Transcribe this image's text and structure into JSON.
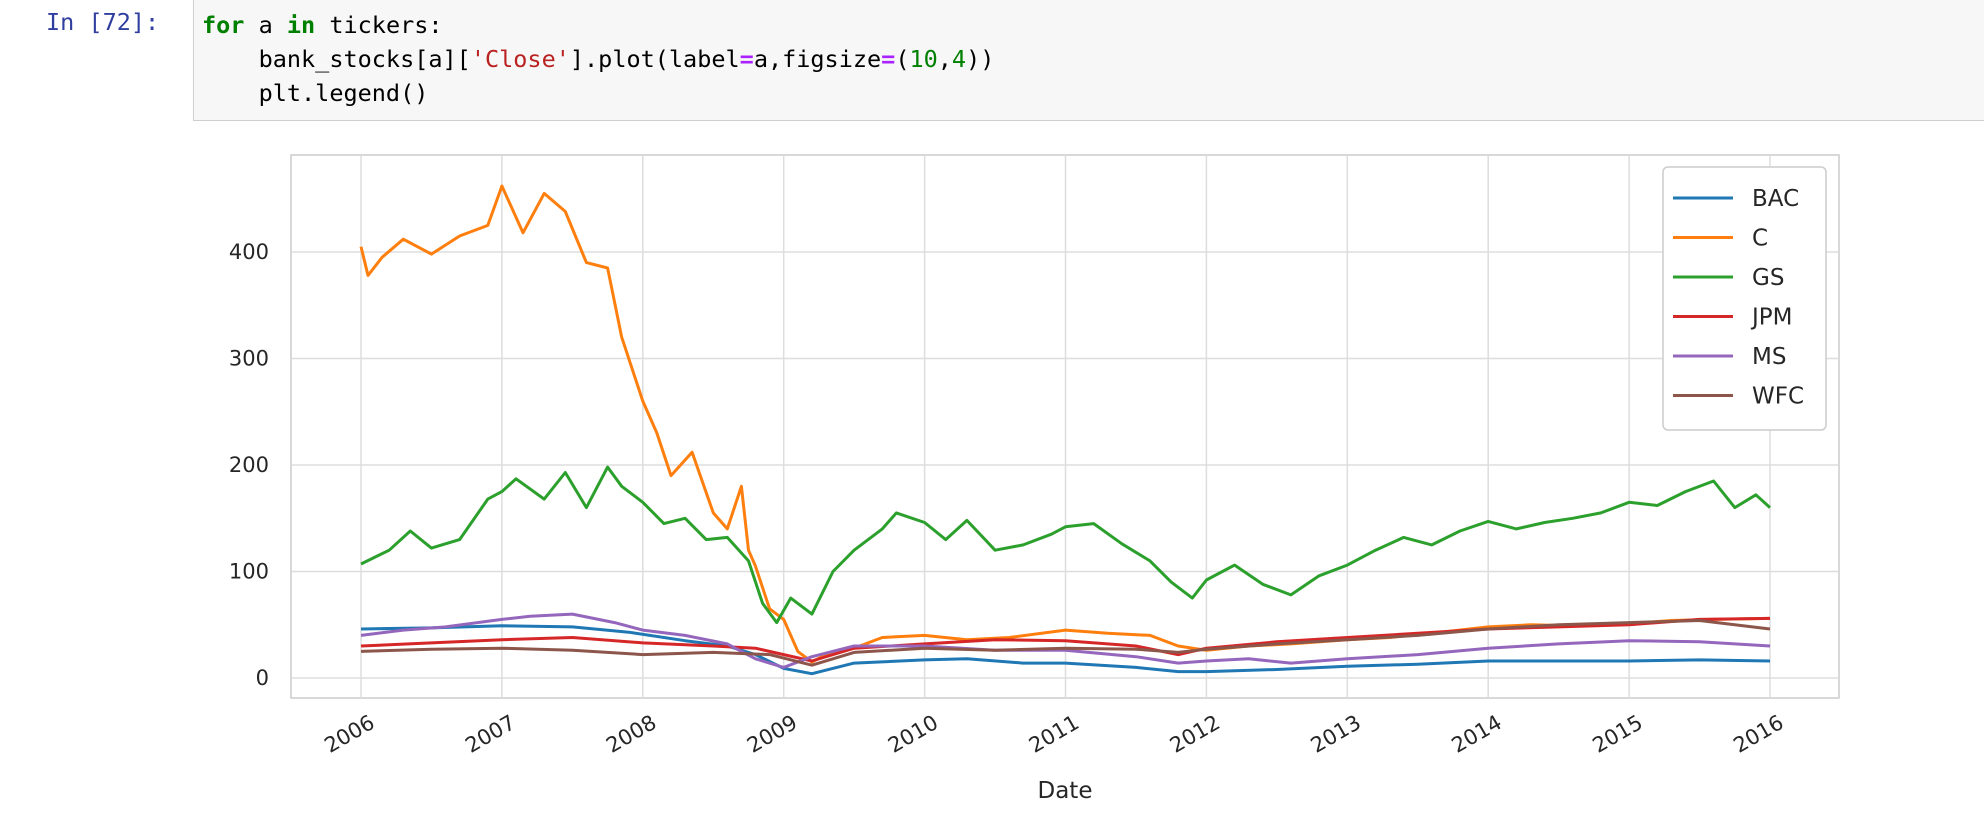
{
  "cell": {
    "prompt": "In [72]:",
    "code_lines": [
      [
        {
          "t": "for",
          "c": "kw"
        },
        {
          "t": " a ",
          "c": ""
        },
        {
          "t": "in",
          "c": "kw"
        },
        {
          "t": " tickers:",
          "c": ""
        }
      ],
      [
        {
          "t": "    bank_stocks[a][",
          "c": ""
        },
        {
          "t": "'Close'",
          "c": "str"
        },
        {
          "t": "].plot(label",
          "c": ""
        },
        {
          "t": "=",
          "c": "op"
        },
        {
          "t": "a,figsize",
          "c": ""
        },
        {
          "t": "=",
          "c": "op"
        },
        {
          "t": "(",
          "c": ""
        },
        {
          "t": "10",
          "c": "num"
        },
        {
          "t": ",",
          "c": ""
        },
        {
          "t": "4",
          "c": "num"
        },
        {
          "t": "))",
          "c": ""
        }
      ],
      [
        {
          "t": "    plt.legend()",
          "c": ""
        }
      ]
    ]
  },
  "chart_data": {
    "type": "line",
    "title": "",
    "xlabel": "Date",
    "ylabel": "",
    "x_ticks": [
      "2006",
      "2007",
      "2008",
      "2009",
      "2010",
      "2011",
      "2012",
      "2013",
      "2014",
      "2015",
      "2016"
    ],
    "y_ticks": [
      0,
      100,
      200,
      300,
      400
    ],
    "xlim": [
      2006.0,
      2016.0
    ],
    "ylim": [
      -20,
      490
    ],
    "grid": true,
    "legend_position": "upper right",
    "series": [
      {
        "name": "BAC",
        "color": "#1f77b4",
        "x": [
          2006.0,
          2006.5,
          2007.0,
          2007.5,
          2007.9,
          2008.3,
          2008.6,
          2008.8,
          2009.0,
          2009.2,
          2009.5,
          2010.0,
          2010.3,
          2010.7,
          2011.0,
          2011.5,
          2011.8,
          2012.0,
          2012.5,
          2013.0,
          2013.5,
          2014.0,
          2014.5,
          2015.0,
          2015.5,
          2016.0
        ],
        "y": [
          46,
          47,
          49,
          48,
          43,
          35,
          30,
          22,
          9,
          4,
          14,
          17,
          18,
          14,
          14,
          10,
          6,
          6,
          8,
          11,
          13,
          16,
          16,
          16,
          17,
          16
        ]
      },
      {
        "name": "C",
        "color": "#ff7f0e",
        "x": [
          2006.0,
          2006.05,
          2006.15,
          2006.3,
          2006.5,
          2006.7,
          2006.9,
          2007.0,
          2007.15,
          2007.3,
          2007.45,
          2007.6,
          2007.75,
          2007.85,
          2008.0,
          2008.1,
          2008.2,
          2008.35,
          2008.5,
          2008.6,
          2008.7,
          2008.75,
          2008.8,
          2008.9,
          2009.0,
          2009.1,
          2009.2,
          2009.3,
          2009.5,
          2009.7,
          2010.0,
          2010.3,
          2010.6,
          2011.0,
          2011.3,
          2011.6,
          2011.8,
          2012.0,
          2012.3,
          2012.6,
          2013.0,
          2013.3,
          2013.6,
          2014.0,
          2014.3,
          2014.6,
          2015.0,
          2015.3,
          2015.6,
          2016.0
        ],
        "y": [
          405,
          378,
          395,
          412,
          398,
          415,
          425,
          462,
          418,
          455,
          438,
          390,
          385,
          320,
          260,
          230,
          190,
          212,
          155,
          140,
          180,
          120,
          105,
          65,
          55,
          25,
          15,
          22,
          28,
          38,
          40,
          36,
          38,
          45,
          42,
          40,
          30,
          26,
          30,
          32,
          36,
          38,
          42,
          48,
          50,
          49,
          51,
          54,
          55,
          56
        ]
      },
      {
        "name": "GS",
        "color": "#2ca02c",
        "x": [
          2006.0,
          2006.2,
          2006.35,
          2006.5,
          2006.7,
          2006.9,
          2007.0,
          2007.1,
          2007.3,
          2007.45,
          2007.6,
          2007.75,
          2007.85,
          2008.0,
          2008.15,
          2008.3,
          2008.45,
          2008.6,
          2008.75,
          2008.85,
          2008.95,
          2009.05,
          2009.2,
          2009.35,
          2009.5,
          2009.7,
          2009.8,
          2010.0,
          2010.15,
          2010.3,
          2010.5,
          2010.7,
          2010.9,
          2011.0,
          2011.2,
          2011.4,
          2011.6,
          2011.75,
          2011.9,
          2012.0,
          2012.2,
          2012.4,
          2012.6,
          2012.8,
          2013.0,
          2013.2,
          2013.4,
          2013.6,
          2013.8,
          2014.0,
          2014.2,
          2014.4,
          2014.6,
          2014.8,
          2015.0,
          2015.2,
          2015.4,
          2015.6,
          2015.75,
          2015.9,
          2016.0
        ],
        "y": [
          107,
          120,
          138,
          122,
          130,
          168,
          175,
          187,
          168,
          193,
          160,
          198,
          180,
          165,
          145,
          150,
          130,
          132,
          110,
          70,
          52,
          75,
          60,
          100,
          120,
          140,
          155,
          146,
          130,
          148,
          120,
          125,
          135,
          142,
          145,
          126,
          110,
          90,
          75,
          92,
          106,
          88,
          78,
          96,
          106,
          120,
          132,
          125,
          138,
          147,
          140,
          146,
          150,
          155,
          165,
          162,
          175,
          185,
          160,
          172,
          160
        ]
      },
      {
        "name": "JPM",
        "color": "#d62728",
        "x": [
          2006.0,
          2006.5,
          2007.0,
          2007.5,
          2008.0,
          2008.5,
          2008.8,
          2009.0,
          2009.2,
          2009.5,
          2010.0,
          2010.5,
          2011.0,
          2011.5,
          2011.8,
          2012.0,
          2012.5,
          2013.0,
          2013.5,
          2014.0,
          2014.5,
          2015.0,
          2015.5,
          2016.0
        ],
        "y": [
          30,
          33,
          36,
          38,
          33,
          30,
          28,
          22,
          16,
          28,
          32,
          36,
          35,
          30,
          22,
          28,
          34,
          38,
          42,
          46,
          48,
          50,
          55,
          56
        ]
      },
      {
        "name": "MS",
        "color": "#9467bd",
        "x": [
          2006.0,
          2006.3,
          2006.6,
          2007.0,
          2007.2,
          2007.5,
          2007.8,
          2008.0,
          2008.3,
          2008.6,
          2008.8,
          2009.0,
          2009.2,
          2009.5,
          2010.0,
          2010.5,
          2011.0,
          2011.5,
          2011.8,
          2012.0,
          2012.3,
          2012.6,
          2013.0,
          2013.5,
          2014.0,
          2014.5,
          2015.0,
          2015.5,
          2016.0
        ],
        "y": [
          40,
          45,
          48,
          55,
          58,
          60,
          52,
          45,
          40,
          32,
          18,
          10,
          20,
          30,
          30,
          26,
          26,
          20,
          14,
          16,
          18,
          14,
          18,
          22,
          28,
          32,
          35,
          34,
          30
        ]
      },
      {
        "name": "WFC",
        "color": "#8c564b",
        "x": [
          2006.0,
          2006.5,
          2007.0,
          2007.5,
          2008.0,
          2008.5,
          2008.9,
          2009.2,
          2009.5,
          2010.0,
          2010.5,
          2011.0,
          2011.5,
          2011.8,
          2012.0,
          2012.5,
          2013.0,
          2013.5,
          2014.0,
          2014.5,
          2015.0,
          2015.5,
          2016.0
        ],
        "y": [
          25,
          27,
          28,
          26,
          22,
          24,
          22,
          12,
          24,
          28,
          26,
          28,
          27,
          24,
          27,
          32,
          36,
          40,
          46,
          50,
          52,
          54,
          46
        ]
      }
    ]
  }
}
